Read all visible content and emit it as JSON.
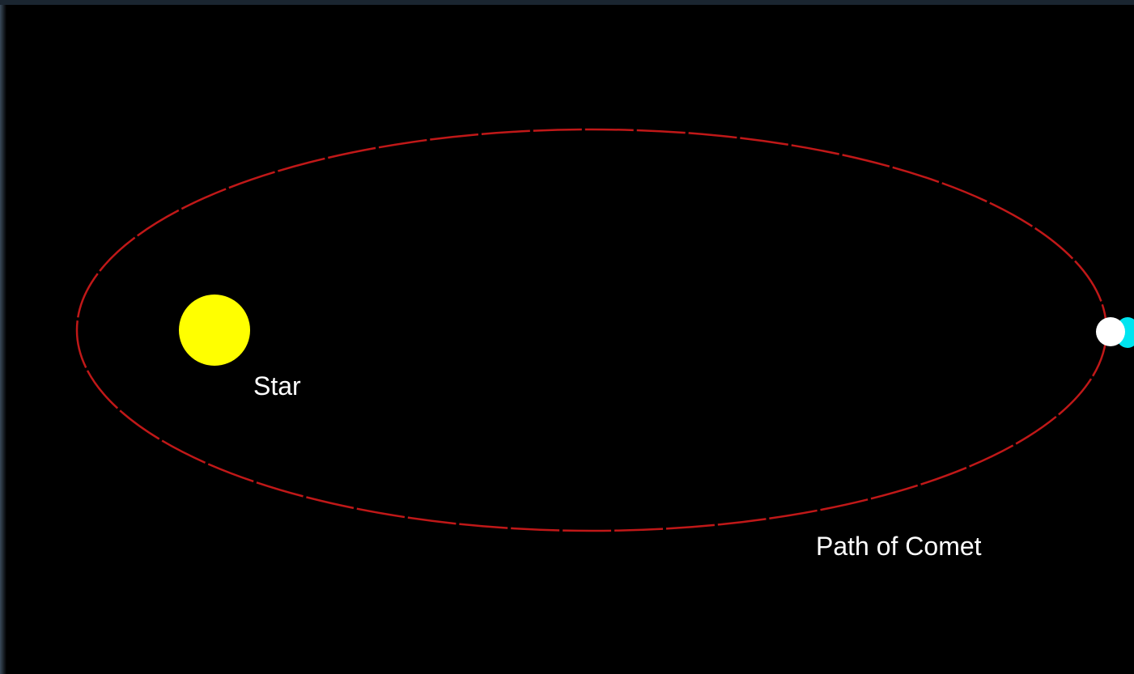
{
  "labels": {
    "star": "Star",
    "path": "Path of Comet"
  }
}
